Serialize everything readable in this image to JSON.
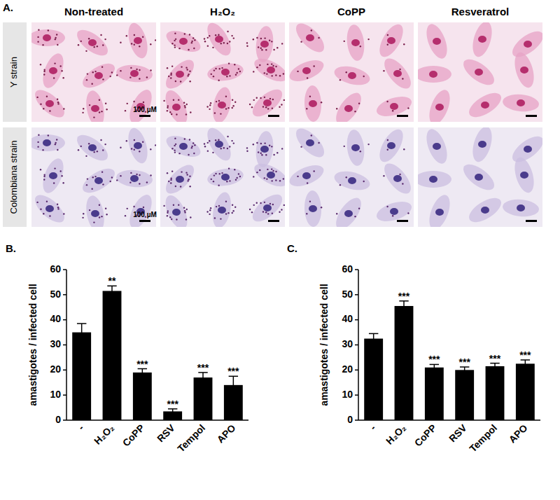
{
  "panel_a": {
    "label": "A.",
    "columns": [
      "Non-treated",
      "H₂O₂",
      "CoPP",
      "Resveratrol"
    ],
    "rows": [
      "Y strain",
      "Colombiana strain"
    ],
    "scale_bar": "100 µM"
  },
  "chart_data": [
    {
      "type": "bar",
      "annotations": [
        "B."
      ],
      "y_label": "amastigotes / infected cell",
      "categories": [
        "-",
        "H₂O₂",
        "CoPP",
        "RSV",
        "Tempol",
        "APO"
      ],
      "values": [
        35,
        51.5,
        19,
        3.5,
        17,
        14
      ],
      "errors": [
        3.5,
        2,
        1.5,
        1,
        2,
        3.5
      ],
      "significance": [
        null,
        "**",
        "***",
        "***",
        "***",
        "***"
      ],
      "color": "#000000",
      "ylim": [
        0,
        60
      ],
      "yticks": [
        0,
        10,
        20,
        30,
        40,
        50,
        60
      ]
    },
    {
      "type": "bar",
      "annotations": [
        "C."
      ],
      "y_label": "amastigotes / infected cell",
      "categories": [
        "-",
        "H₂O₂",
        "CoPP",
        "RSV",
        "Tempol",
        "APO"
      ],
      "values": [
        32.5,
        45.5,
        21,
        20,
        21.5,
        22.5
      ],
      "errors": [
        2,
        2,
        1.2,
        1.2,
        1.2,
        1.5
      ],
      "significance": [
        null,
        "***",
        "***",
        "***",
        "***",
        "***"
      ],
      "color": "#000000",
      "ylim": [
        0,
        60
      ],
      "yticks": [
        0,
        10,
        20,
        30,
        40,
        50,
        60
      ]
    }
  ]
}
